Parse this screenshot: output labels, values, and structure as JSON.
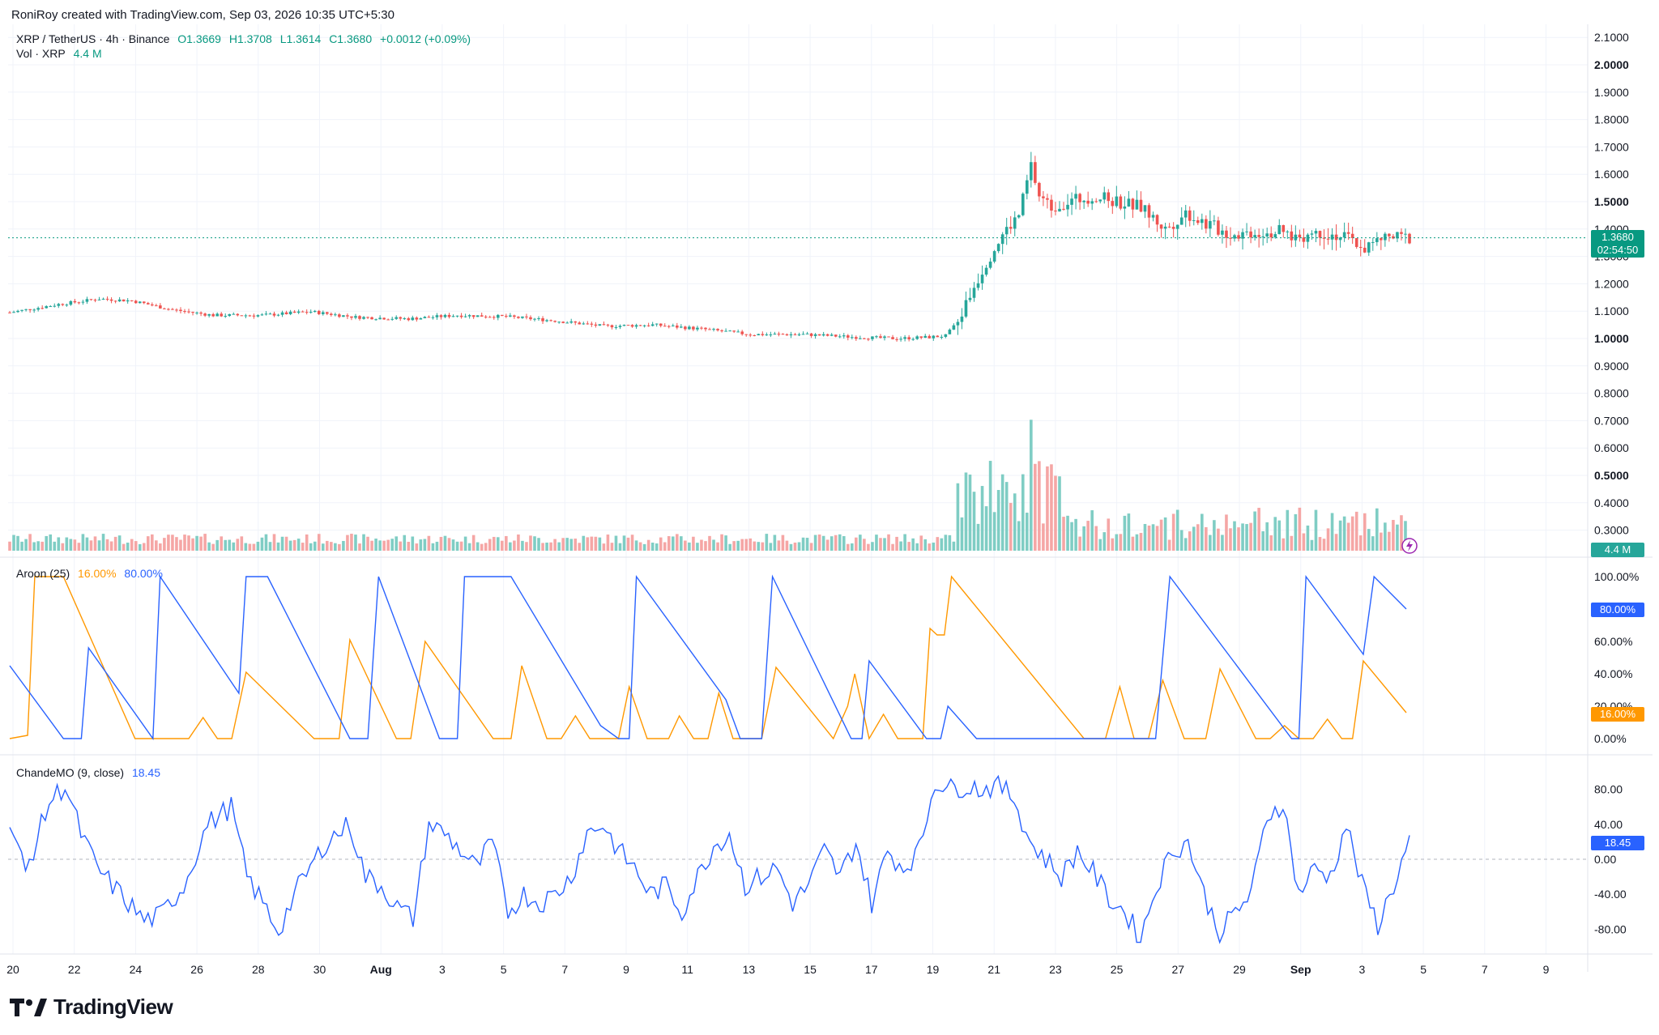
{
  "credit": "RoniRoy created with TradingView.com, Sep 03, 2026 10:35 UTC+5:30",
  "price_legend": {
    "symbol": "XRP / TetherUS · 4h · Binance",
    "open": "O1.3669",
    "high": "H1.3708",
    "low": "L1.3614",
    "close": "C1.3680",
    "change": "+0.0012 (+0.09%)"
  },
  "vol_legend": {
    "label": "Vol · XRP",
    "value": "4.4 M"
  },
  "aroon_legend": {
    "label": "Aroon (25)",
    "up": "16.00%",
    "down": "80.00%"
  },
  "cmo_legend": {
    "label": "ChandeMO (9, close)",
    "value": "18.45"
  },
  "price_tag": {
    "price": "1.3680",
    "countdown": "02:54:50"
  },
  "vol_tag": "4.4 M",
  "aroon_tags": {
    "down": "80.00%",
    "up": "16.00%"
  },
  "cmo_tag": "18.45",
  "brand": "TradingView",
  "colors": {
    "up": "#26a69a",
    "down": "#ef5350",
    "aroon_up": "#ff9800",
    "aroon_down": "#2962ff",
    "cmo": "#2962ff",
    "accent": "#089981"
  },
  "chart_data": {
    "type": "candlestick",
    "price_axis": {
      "ticks": [
        "2.1000",
        "2.0000",
        "1.9000",
        "1.8000",
        "1.7000",
        "1.6000",
        "1.5000",
        "1.4000",
        "1.3000",
        "1.2000",
        "1.1000",
        "1.0000",
        "0.9000",
        "0.8000",
        "0.7000",
        "0.6000",
        "0.5000",
        "0.4000",
        "0.3000"
      ],
      "bold_ticks": [
        "2.0000",
        "1.5000",
        "1.0000",
        "0.5000"
      ],
      "range": [
        0.28,
        2.13
      ]
    },
    "x_axis": {
      "labels": [
        "20",
        "22",
        "24",
        "26",
        "28",
        "30",
        "Aug",
        "3",
        "5",
        "7",
        "9",
        "11",
        "13",
        "15",
        "17",
        "19",
        "21",
        "23",
        "25",
        "27",
        "29",
        "Sep",
        "3",
        "5",
        "7",
        "9"
      ],
      "bold_labels": [
        "Aug",
        "Sep"
      ]
    },
    "price_anchors": [
      [
        0,
        1.095
      ],
      [
        12,
        1.125
      ],
      [
        22,
        1.145
      ],
      [
        30,
        1.138
      ],
      [
        40,
        1.105
      ],
      [
        50,
        1.085
      ],
      [
        62,
        1.085
      ],
      [
        74,
        1.098
      ],
      [
        85,
        1.078
      ],
      [
        98,
        1.072
      ],
      [
        110,
        1.085
      ],
      [
        122,
        1.08
      ],
      [
        134,
        1.065
      ],
      [
        146,
        1.045
      ],
      [
        158,
        1.05
      ],
      [
        170,
        1.035
      ],
      [
        182,
        1.015
      ],
      [
        195,
        1.015
      ],
      [
        208,
        1.005
      ],
      [
        218,
        1.0
      ],
      [
        226,
        1.005
      ],
      [
        230,
        1.01
      ],
      [
        233,
        1.06
      ],
      [
        236,
        1.16
      ],
      [
        240,
        1.28
      ],
      [
        244,
        1.38
      ],
      [
        248,
        1.45
      ],
      [
        251,
        1.63
      ],
      [
        253,
        1.52
      ],
      [
        256,
        1.48
      ],
      [
        260,
        1.5
      ],
      [
        266,
        1.52
      ],
      [
        272,
        1.5
      ],
      [
        278,
        1.48
      ],
      [
        284,
        1.4
      ],
      [
        289,
        1.46
      ],
      [
        294,
        1.42
      ],
      [
        300,
        1.38
      ],
      [
        306,
        1.39
      ],
      [
        312,
        1.39
      ],
      [
        316,
        1.37
      ],
      [
        322,
        1.39
      ],
      [
        328,
        1.37
      ],
      [
        333,
        1.33
      ],
      [
        338,
        1.368
      ]
    ],
    "volume_axis": {
      "range": [
        0,
        1.0
      ]
    },
    "aroon": {
      "ylim": [
        0,
        100
      ],
      "ticks": [
        "100.00%",
        "80.00%",
        "60.00%",
        "40.00%",
        "20.00%",
        "0.00%"
      ],
      "up": [
        [
          0,
          0
        ],
        [
          5,
          2
        ],
        [
          7,
          100
        ],
        [
          15,
          100
        ],
        [
          35,
          0
        ],
        [
          50,
          0
        ],
        [
          54,
          13
        ],
        [
          58,
          0
        ],
        [
          62,
          0
        ],
        [
          66,
          41
        ],
        [
          85,
          0
        ],
        [
          92,
          0
        ],
        [
          95,
          61
        ],
        [
          108,
          0
        ],
        [
          112,
          0
        ],
        [
          116,
          60
        ],
        [
          135,
          0
        ],
        [
          140,
          0
        ],
        [
          143,
          45
        ],
        [
          150,
          0
        ],
        [
          154,
          0
        ],
        [
          158,
          14
        ],
        [
          162,
          0
        ],
        [
          170,
          0
        ],
        [
          173,
          32
        ],
        [
          178,
          0
        ],
        [
          184,
          0
        ],
        [
          187,
          14
        ],
        [
          191,
          0
        ],
        [
          195,
          0
        ],
        [
          198,
          28
        ],
        [
          202,
          0
        ],
        [
          210,
          0
        ],
        [
          214,
          44
        ],
        [
          230,
          0
        ],
        [
          234,
          20
        ],
        [
          236,
          40
        ],
        [
          240,
          0
        ],
        [
          244,
          15
        ],
        [
          248,
          0
        ],
        [
          252,
          0
        ],
        [
          255,
          0
        ],
        [
          257,
          68
        ],
        [
          259,
          64
        ],
        [
          261,
          64
        ],
        [
          263,
          100
        ],
        [
          300,
          0
        ],
        [
          306,
          0
        ],
        [
          310,
          32
        ],
        [
          314,
          0
        ],
        [
          318,
          0
        ],
        [
          322,
          36
        ],
        [
          328,
          0
        ],
        [
          334,
          0
        ],
        [
          338,
          43
        ],
        [
          348,
          0
        ],
        [
          352,
          0
        ],
        [
          356,
          8
        ],
        [
          360,
          0
        ],
        [
          364,
          0
        ],
        [
          368,
          12
        ],
        [
          372,
          0
        ],
        [
          375,
          0
        ],
        [
          378,
          48
        ],
        [
          390,
          16
        ]
      ],
      "down": [
        [
          0,
          45
        ],
        [
          15,
          0
        ],
        [
          20,
          0
        ],
        [
          22,
          56
        ],
        [
          40,
          0
        ],
        [
          42,
          100
        ],
        [
          64,
          28
        ],
        [
          66,
          100
        ],
        [
          72,
          100
        ],
        [
          95,
          0
        ],
        [
          100,
          0
        ],
        [
          103,
          100
        ],
        [
          120,
          0
        ],
        [
          125,
          0
        ],
        [
          127,
          100
        ],
        [
          140,
          100
        ],
        [
          165,
          8
        ],
        [
          170,
          0
        ],
        [
          173,
          0
        ],
        [
          175,
          100
        ],
        [
          200,
          24
        ],
        [
          204,
          0
        ],
        [
          210,
          0
        ],
        [
          213,
          100
        ],
        [
          235,
          0
        ],
        [
          238,
          0
        ],
        [
          240,
          48
        ],
        [
          256,
          0
        ],
        [
          260,
          0
        ],
        [
          262,
          20
        ],
        [
          270,
          0
        ],
        [
          282,
          0
        ],
        [
          290,
          0
        ],
        [
          296,
          0
        ],
        [
          300,
          0
        ],
        [
          305,
          0
        ],
        [
          310,
          0
        ],
        [
          315,
          0
        ],
        [
          320,
          0
        ],
        [
          324,
          100
        ],
        [
          358,
          0
        ],
        [
          360,
          0
        ],
        [
          362,
          100
        ],
        [
          378,
          52
        ],
        [
          381,
          100
        ],
        [
          390,
          80
        ]
      ]
    },
    "cmo": {
      "ylim": [
        -100,
        100
      ],
      "ticks": [
        "80.00",
        "40.00",
        "0.00",
        "-40.00",
        "-80.00"
      ],
      "anchors": [
        [
          0,
          40
        ],
        [
          4,
          -15
        ],
        [
          10,
          65
        ],
        [
          14,
          85
        ],
        [
          18,
          30
        ],
        [
          22,
          -10
        ],
        [
          26,
          -30
        ],
        [
          30,
          -50
        ],
        [
          34,
          -70
        ],
        [
          38,
          -65
        ],
        [
          44,
          -30
        ],
        [
          50,
          40
        ],
        [
          56,
          60
        ],
        [
          60,
          -20
        ],
        [
          64,
          -50
        ],
        [
          68,
          -82
        ],
        [
          72,
          -40
        ],
        [
          76,
          -10
        ],
        [
          80,
          20
        ],
        [
          86,
          40
        ],
        [
          90,
          -20
        ],
        [
          94,
          -30
        ],
        [
          98,
          -55
        ],
        [
          102,
          -68
        ],
        [
          106,
          40
        ],
        [
          110,
          30
        ],
        [
          114,
          10
        ],
        [
          118,
          -10
        ],
        [
          122,
          20
        ],
        [
          126,
          -60
        ],
        [
          130,
          -40
        ],
        [
          134,
          -50
        ],
        [
          138,
          -40
        ],
        [
          142,
          -20
        ],
        [
          146,
          30
        ],
        [
          150,
          40
        ],
        [
          154,
          10
        ],
        [
          158,
          -10
        ],
        [
          162,
          -40
        ],
        [
          166,
          -30
        ],
        [
          170,
          -60
        ],
        [
          174,
          -20
        ],
        [
          178,
          15
        ],
        [
          182,
          30
        ],
        [
          186,
          -30
        ],
        [
          190,
          -20
        ],
        [
          194,
          -10
        ],
        [
          198,
          -50
        ],
        [
          202,
          -30
        ],
        [
          206,
          10
        ],
        [
          210,
          -20
        ],
        [
          214,
          20
        ],
        [
          218,
          -50
        ],
        [
          222,
          10
        ],
        [
          226,
          -10
        ],
        [
          230,
          10
        ],
        [
          234,
          90
        ],
        [
          238,
          80
        ],
        [
          242,
          85
        ],
        [
          246,
          80
        ],
        [
          250,
          85
        ],
        [
          254,
          70
        ],
        [
          258,
          20
        ],
        [
          262,
          0
        ],
        [
          266,
          -20
        ],
        [
          270,
          10
        ],
        [
          274,
          -15
        ],
        [
          278,
          -45
        ],
        [
          282,
          -60
        ],
        [
          286,
          -90
        ],
        [
          290,
          -30
        ],
        [
          294,
          10
        ],
        [
          298,
          20
        ],
        [
          302,
          -40
        ],
        [
          306,
          -85
        ],
        [
          310,
          -60
        ],
        [
          314,
          -40
        ],
        [
          318,
          50
        ],
        [
          322,
          65
        ],
        [
          326,
          -40
        ],
        [
          330,
          -10
        ],
        [
          334,
          -20
        ],
        [
          338,
          40
        ],
        [
          342,
          -30
        ],
        [
          346,
          -75
        ],
        [
          350,
          -30
        ],
        [
          354,
          20
        ]
      ]
    }
  }
}
